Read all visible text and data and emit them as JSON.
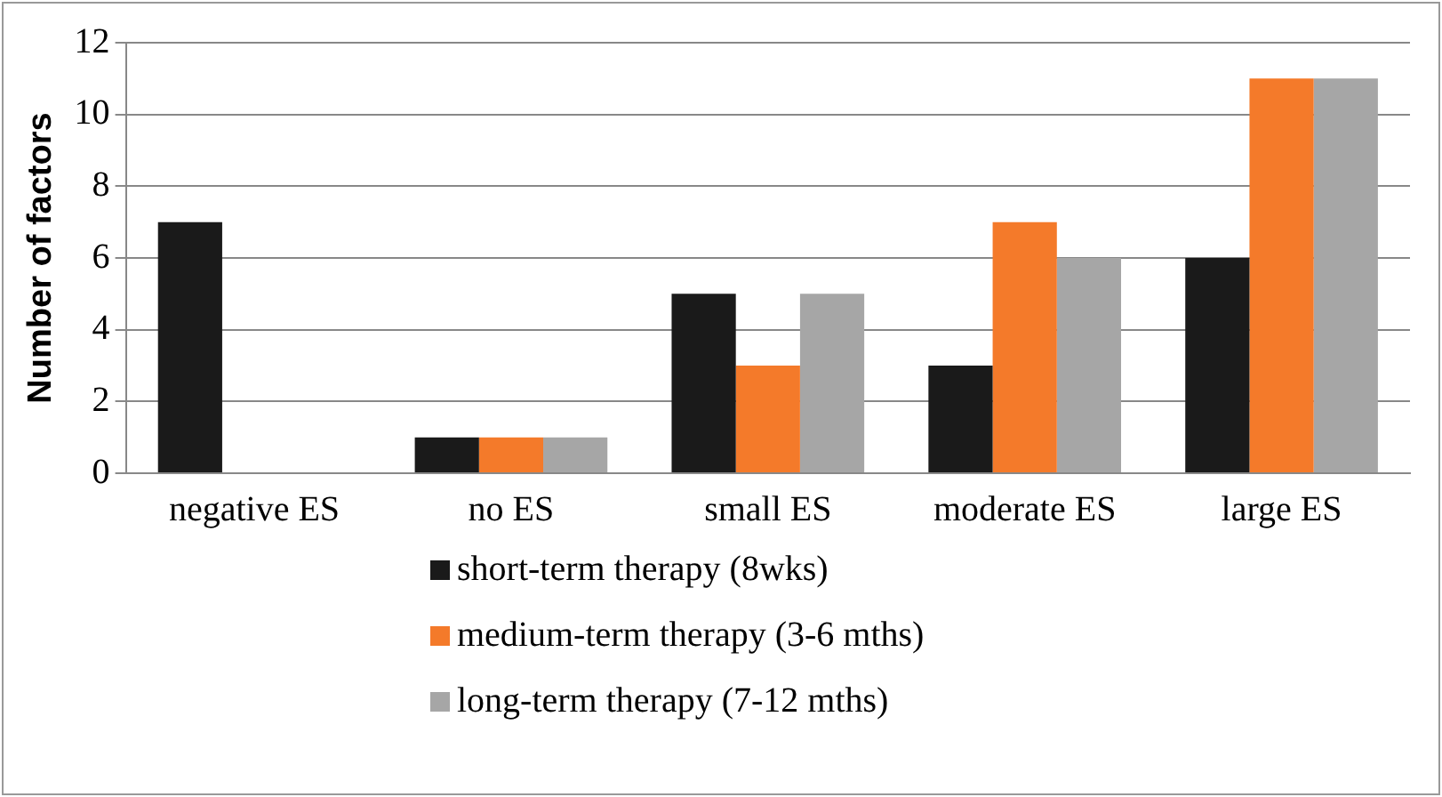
{
  "chart_data": {
    "type": "bar",
    "ylabel": "Number of factors",
    "categories": [
      "negative ES",
      "no ES",
      "small ES",
      "moderate ES",
      "large ES"
    ],
    "series": [
      {
        "name": "short-term therapy (8wks)",
        "color": "#1a1a1a",
        "values": [
          7,
          1,
          5,
          3,
          6
        ]
      },
      {
        "name": "medium-term therapy (3-6 mths)",
        "color": "#f47a2a",
        "values": [
          0,
          1,
          3,
          7,
          11
        ]
      },
      {
        "name": "long-term therapy (7-12 mths)",
        "color": "#a6a6a6",
        "values": [
          0,
          1,
          5,
          6,
          11
        ]
      }
    ],
    "ylim": [
      0,
      12
    ],
    "yticks": [
      0,
      2,
      4,
      6,
      8,
      10,
      12
    ],
    "grid": "y",
    "legend": "bottom"
  }
}
